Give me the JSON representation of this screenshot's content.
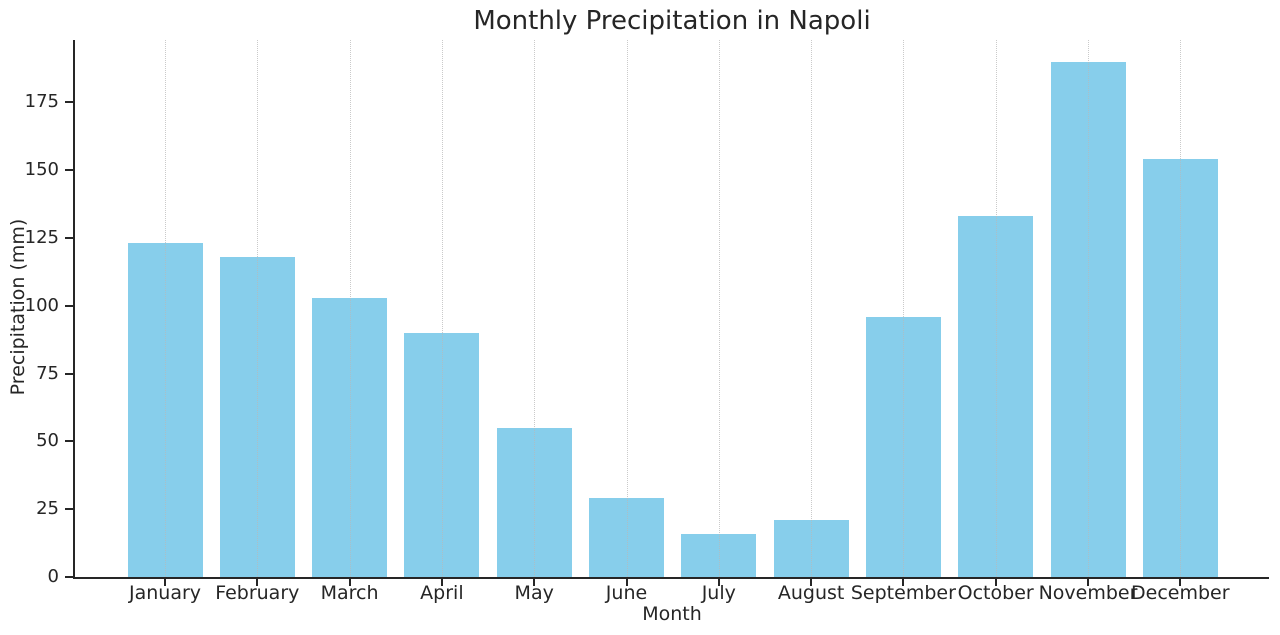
{
  "title": "Monthly Precipitation in Napoli",
  "chart_data": {
    "type": "bar",
    "title": "Monthly Precipitation in Napoli",
    "xlabel": "Month",
    "ylabel": "Precipitation (mm)",
    "categories": [
      "January",
      "February",
      "March",
      "April",
      "May",
      "June",
      "July",
      "August",
      "September",
      "October",
      "November",
      "December"
    ],
    "values": [
      123,
      118,
      103,
      90,
      55,
      29,
      16,
      21,
      96,
      133,
      190,
      154
    ],
    "yticks": [
      0,
      25,
      50,
      75,
      100,
      125,
      150,
      175
    ],
    "ylim": [
      0,
      198
    ],
    "grid": "vertical-dotted-on-top",
    "legend": "none",
    "colors": {
      "bar": "#87CEEB",
      "axis": "#262626",
      "grid": "#b9b9b9",
      "background": "#ffffff"
    }
  }
}
